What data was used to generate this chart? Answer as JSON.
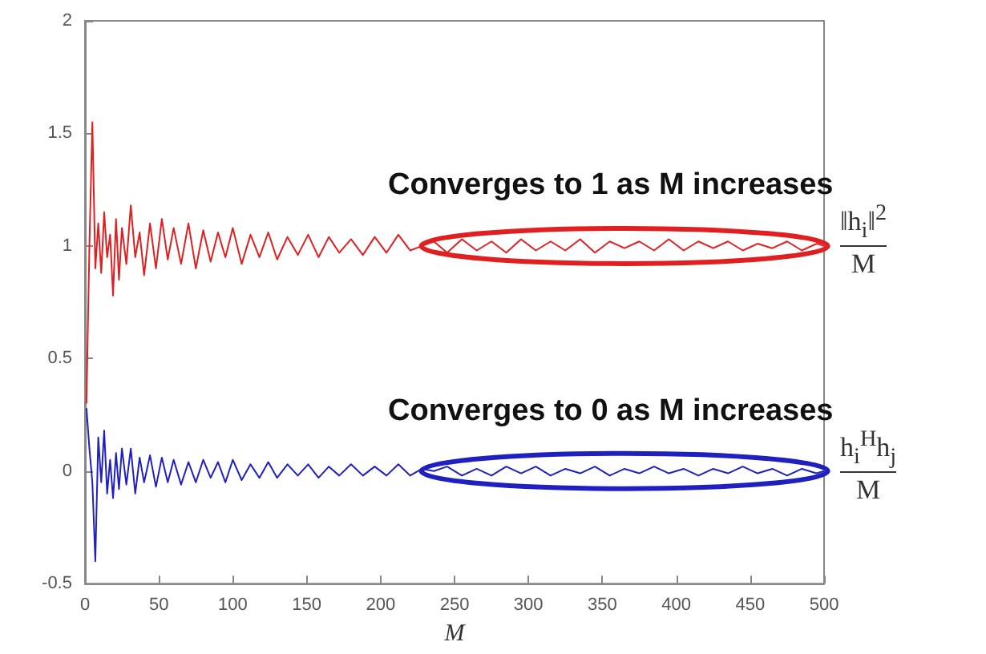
{
  "chart_data": {
    "type": "line",
    "xlabel": "M",
    "x": [
      1,
      3,
      5,
      7,
      9,
      11,
      13,
      15,
      17,
      19,
      21,
      23,
      25,
      28,
      31,
      34,
      37,
      40,
      44,
      48,
      52,
      56,
      60,
      65,
      70,
      75,
      80,
      85,
      90,
      95,
      100,
      106,
      112,
      118,
      124,
      130,
      137,
      144,
      151,
      158,
      165,
      172,
      180,
      188,
      196,
      204,
      212,
      220,
      228,
      236,
      245,
      255,
      265,
      275,
      285,
      295,
      305,
      315,
      325,
      335,
      345,
      355,
      365,
      375,
      385,
      395,
      405,
      415,
      425,
      435,
      445,
      455,
      465,
      475,
      485,
      495,
      500
    ],
    "series": [
      {
        "color": "#e02020",
        "values": [
          0.3,
          1.0,
          1.55,
          0.9,
          1.1,
          0.88,
          1.15,
          0.95,
          1.05,
          0.78,
          1.12,
          0.85,
          1.08,
          0.92,
          1.18,
          0.95,
          1.06,
          0.87,
          1.1,
          0.9,
          1.12,
          0.94,
          1.08,
          0.92,
          1.1,
          0.9,
          1.07,
          0.93,
          1.06,
          0.95,
          1.08,
          0.92,
          1.05,
          0.95,
          1.06,
          0.94,
          1.04,
          0.96,
          1.05,
          0.95,
          1.04,
          0.97,
          1.03,
          0.96,
          1.04,
          0.97,
          1.05,
          0.98,
          1.0,
          1.02,
          0.97,
          1.03,
          0.98,
          1.02,
          0.97,
          1.03,
          0.98,
          1.02,
          0.98,
          1.03,
          0.97,
          1.02,
          0.99,
          1.02,
          0.98,
          1.03,
          0.98,
          1.02,
          0.99,
          1.02,
          0.98,
          1.01,
          0.99,
          1.02,
          0.98,
          1.01,
          1.0
        ]
      },
      {
        "color": "#2020c0",
        "values": [
          0.28,
          0.1,
          -0.05,
          -0.4,
          0.15,
          -0.05,
          0.18,
          -0.1,
          0.05,
          -0.12,
          0.08,
          -0.08,
          0.1,
          -0.06,
          0.1,
          -0.1,
          0.06,
          -0.05,
          0.07,
          -0.07,
          0.06,
          -0.05,
          0.05,
          -0.06,
          0.04,
          -0.05,
          0.05,
          -0.03,
          0.04,
          -0.05,
          0.05,
          -0.04,
          0.03,
          -0.03,
          0.04,
          -0.03,
          0.03,
          -0.02,
          0.03,
          -0.03,
          0.02,
          -0.02,
          0.03,
          -0.02,
          0.02,
          -0.02,
          0.03,
          -0.02,
          0.01,
          0.0,
          0.02,
          -0.02,
          0.01,
          -0.02,
          0.02,
          -0.01,
          0.02,
          -0.02,
          0.01,
          -0.01,
          0.02,
          -0.02,
          0.01,
          -0.01,
          0.02,
          -0.01,
          0.01,
          -0.02,
          0.01,
          -0.01,
          0.02,
          -0.01,
          0.01,
          -0.02,
          0.01,
          -0.01,
          0.0
        ]
      }
    ],
    "xlim": [
      0,
      500
    ],
    "xticks": [
      0,
      50,
      100,
      150,
      200,
      250,
      300,
      350,
      400,
      450,
      500
    ],
    "ylim": [
      -0.5,
      2
    ],
    "yticks": [
      -0.5,
      0,
      0.5,
      1,
      1.5,
      2
    ],
    "grid": false,
    "marker": "none",
    "line_style": "solid",
    "annotations": [
      "Converges to 1 as M increases",
      "‖h$_{i}$‖$^{2}$",
      "M",
      "Converges to 0 as M increases",
      "h$_{i}$$^{H}$h$_{j}$",
      "M"
    ]
  }
}
